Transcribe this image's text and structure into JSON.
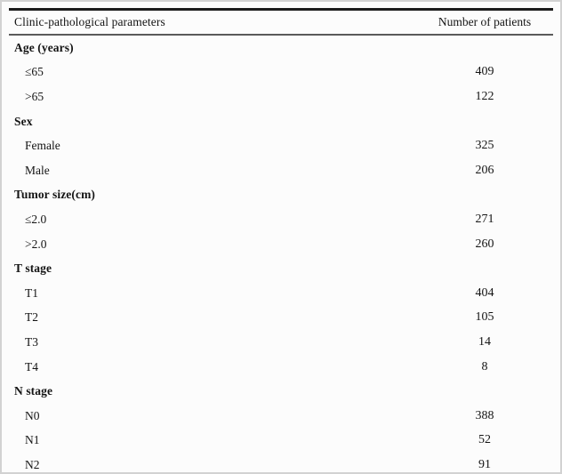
{
  "table": {
    "col1_header": "Clinic-pathological parameters",
    "col2_header": "Number of patients",
    "rows": [
      {
        "type": "group",
        "label": "Age (years)",
        "value": ""
      },
      {
        "type": "item",
        "label": "≤65",
        "value": "409"
      },
      {
        "type": "item",
        "label": ">65",
        "value": "122"
      },
      {
        "type": "group",
        "label": "Sex",
        "value": ""
      },
      {
        "type": "item",
        "label": "Female",
        "value": "325"
      },
      {
        "type": "item",
        "label": "Male",
        "value": "206"
      },
      {
        "type": "group",
        "label": "Tumor size(cm)",
        "value": ""
      },
      {
        "type": "item",
        "label": "≤2.0",
        "value": "271"
      },
      {
        "type": "item",
        "label": ">2.0",
        "value": "260"
      },
      {
        "type": "group",
        "label": "T stage",
        "value": ""
      },
      {
        "type": "item",
        "label": "T1",
        "value": "404"
      },
      {
        "type": "item",
        "label": "T2",
        "value": "105"
      },
      {
        "type": "item",
        "label": "T3",
        "value": "14"
      },
      {
        "type": "item",
        "label": "T4",
        "value": "8"
      },
      {
        "type": "group",
        "label": "N stage",
        "value": ""
      },
      {
        "type": "item",
        "label": "N0",
        "value": "388"
      },
      {
        "type": "item",
        "label": "N1",
        "value": "52"
      },
      {
        "type": "item",
        "label": "N2",
        "value": "91"
      }
    ]
  }
}
